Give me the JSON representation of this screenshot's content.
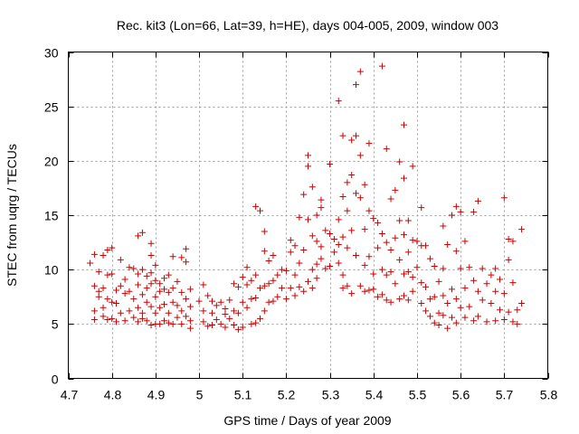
{
  "chart_data": {
    "type": "scatter",
    "title": "Rec. kit3 (Lon=66, Lat=39, h=HE), days 004-005, 2009, window 003",
    "xlabel": "GPS time / Days of year 2009",
    "ylabel": "STEC from uqrg / TECUs",
    "xlim": [
      4.7,
      5.8
    ],
    "ylim": [
      0,
      30
    ],
    "xticks": [
      "4.7",
      "4.8",
      "4.9",
      "5",
      "5.1",
      "5.2",
      "5.3",
      "5.4",
      "5.5",
      "5.6",
      "5.7",
      "5.8"
    ],
    "yticks": [
      "0",
      "5",
      "10",
      "15",
      "20",
      "25",
      "30"
    ],
    "grid": true,
    "marker": "plus",
    "color": "#cc0000",
    "series": [
      {
        "name": "",
        "points": [
          [
            4.75,
            10.6
          ],
          [
            4.76,
            11.4
          ],
          [
            4.76,
            8.5
          ],
          [
            4.76,
            6.2
          ],
          [
            4.76,
            5.4
          ],
          [
            4.77,
            9.8
          ],
          [
            4.77,
            8.0
          ],
          [
            4.77,
            7.5
          ],
          [
            4.78,
            11.3
          ],
          [
            4.78,
            8.3
          ],
          [
            4.78,
            6.5
          ],
          [
            4.78,
            5.7
          ],
          [
            4.79,
            11.8
          ],
          [
            4.79,
            9.5
          ],
          [
            4.79,
            7.3
          ],
          [
            4.79,
            5.4
          ],
          [
            4.8,
            12.0
          ],
          [
            4.8,
            9.6
          ],
          [
            4.8,
            7.0
          ],
          [
            4.8,
            5.5
          ],
          [
            4.81,
            8.1
          ],
          [
            4.81,
            6.9
          ],
          [
            4.81,
            5.2
          ],
          [
            4.82,
            10.9
          ],
          [
            4.82,
            8.5
          ],
          [
            4.82,
            6.0
          ],
          [
            4.83,
            9.1
          ],
          [
            4.83,
            7.8
          ],
          [
            4.83,
            5.3
          ],
          [
            4.84,
            10.2
          ],
          [
            4.84,
            8.0
          ],
          [
            4.84,
            6.2
          ],
          [
            4.85,
            10.1
          ],
          [
            4.85,
            7.3
          ],
          [
            4.85,
            5.6
          ],
          [
            4.86,
            13.1
          ],
          [
            4.86,
            9.6
          ],
          [
            4.86,
            8.6
          ],
          [
            4.86,
            6.5
          ],
          [
            4.86,
            5.2
          ],
          [
            4.87,
            13.4
          ],
          [
            4.87,
            10.0
          ],
          [
            4.87,
            7.7
          ],
          [
            4.87,
            6.0
          ],
          [
            4.87,
            5.5
          ],
          [
            4.88,
            9.4
          ],
          [
            4.88,
            8.3
          ],
          [
            4.88,
            7.0
          ],
          [
            4.88,
            5.3
          ],
          [
            4.89,
            12.4
          ],
          [
            4.89,
            11.3
          ],
          [
            4.89,
            9.7
          ],
          [
            4.89,
            8.7
          ],
          [
            4.89,
            6.6
          ],
          [
            4.89,
            4.9
          ],
          [
            4.9,
            10.4
          ],
          [
            4.9,
            9.0
          ],
          [
            4.9,
            7.5
          ],
          [
            4.9,
            6.0
          ],
          [
            4.9,
            5.0
          ],
          [
            4.91,
            8.7
          ],
          [
            4.91,
            8.0
          ],
          [
            4.91,
            6.5
          ],
          [
            4.91,
            5.0
          ],
          [
            4.92,
            9.2
          ],
          [
            4.92,
            8.2
          ],
          [
            4.92,
            6.8
          ],
          [
            4.92,
            5.3
          ],
          [
            4.93,
            9.5
          ],
          [
            4.93,
            7.9
          ],
          [
            4.93,
            6.0
          ],
          [
            4.93,
            5.1
          ],
          [
            4.94,
            11.2
          ],
          [
            4.94,
            8.3
          ],
          [
            4.94,
            7.0
          ],
          [
            4.94,
            5.0
          ],
          [
            4.95,
            8.9
          ],
          [
            4.95,
            6.7
          ],
          [
            4.95,
            5.6
          ],
          [
            4.96,
            11.1
          ],
          [
            4.96,
            7.9
          ],
          [
            4.96,
            6.2
          ],
          [
            4.96,
            5.0
          ],
          [
            4.97,
            11.9
          ],
          [
            4.97,
            10.7
          ],
          [
            4.97,
            7.3
          ],
          [
            4.97,
            5.7
          ],
          [
            4.98,
            8.2
          ],
          [
            4.98,
            6.6
          ],
          [
            4.98,
            5.3
          ],
          [
            4.98,
            4.6
          ],
          [
            5.0,
            7.1
          ],
          [
            5.01,
            8.6
          ],
          [
            5.01,
            6.2
          ],
          [
            5.01,
            5.2
          ],
          [
            5.02,
            7.6
          ],
          [
            5.02,
            4.8
          ],
          [
            5.03,
            7.1
          ],
          [
            5.03,
            6.0
          ],
          [
            5.03,
            4.9
          ],
          [
            5.04,
            6.7
          ],
          [
            5.04,
            5.4
          ],
          [
            5.05,
            7.0
          ],
          [
            5.05,
            5.0
          ],
          [
            5.06,
            6.4
          ],
          [
            5.06,
            5.9
          ],
          [
            5.06,
            4.7
          ],
          [
            5.07,
            7.2
          ],
          [
            5.07,
            5.5
          ],
          [
            5.08,
            8.7
          ],
          [
            5.08,
            6.2
          ],
          [
            5.08,
            4.9
          ],
          [
            5.09,
            8.4
          ],
          [
            5.09,
            6.0
          ],
          [
            5.09,
            4.5
          ],
          [
            5.1,
            9.3
          ],
          [
            5.1,
            7.0
          ],
          [
            5.1,
            4.7
          ],
          [
            5.11,
            10.2
          ],
          [
            5.11,
            8.6
          ],
          [
            5.11,
            6.5
          ],
          [
            5.12,
            9.0
          ],
          [
            5.12,
            7.3
          ],
          [
            5.12,
            5.0
          ],
          [
            5.13,
            15.8
          ],
          [
            5.13,
            9.5
          ],
          [
            5.13,
            7.4
          ],
          [
            5.13,
            5.1
          ],
          [
            5.14,
            15.4
          ],
          [
            5.14,
            8.3
          ],
          [
            5.14,
            5.5
          ],
          [
            5.15,
            13.5
          ],
          [
            5.15,
            11.7
          ],
          [
            5.15,
            8.5
          ],
          [
            5.15,
            6.2
          ],
          [
            5.16,
            10.8
          ],
          [
            5.16,
            8.7
          ],
          [
            5.16,
            7.0
          ],
          [
            5.17,
            11.3
          ],
          [
            5.17,
            9.0
          ],
          [
            5.17,
            7.1
          ],
          [
            5.18,
            9.5
          ],
          [
            5.18,
            7.5
          ],
          [
            5.19,
            10.0
          ],
          [
            5.19,
            8.3
          ],
          [
            5.2,
            9.9
          ],
          [
            5.2,
            7.3
          ],
          [
            5.21,
            12.7
          ],
          [
            5.21,
            11.6
          ],
          [
            5.21,
            8.3
          ],
          [
            5.22,
            12.2
          ],
          [
            5.22,
            9.5
          ],
          [
            5.22,
            7.6
          ],
          [
            5.23,
            14.8
          ],
          [
            5.23,
            10.6
          ],
          [
            5.23,
            8.4
          ],
          [
            5.24,
            16.9
          ],
          [
            5.24,
            11.8
          ],
          [
            5.24,
            8.0
          ],
          [
            5.25,
            20.5
          ],
          [
            5.25,
            19.5
          ],
          [
            5.25,
            14.6
          ],
          [
            5.25,
            8.9
          ],
          [
            5.26,
            17.6
          ],
          [
            5.26,
            13.1
          ],
          [
            5.26,
            10.0
          ],
          [
            5.26,
            8.3
          ],
          [
            5.27,
            15.0
          ],
          [
            5.27,
            12.6
          ],
          [
            5.27,
            10.5
          ],
          [
            5.27,
            9.2
          ],
          [
            5.28,
            16.4
          ],
          [
            5.28,
            15.7
          ],
          [
            5.28,
            12.1
          ],
          [
            5.28,
            11.0
          ],
          [
            5.29,
            13.6
          ],
          [
            5.29,
            10.1
          ],
          [
            5.3,
            19.7
          ],
          [
            5.3,
            13.3
          ],
          [
            5.3,
            10.3
          ],
          [
            5.31,
            12.8
          ],
          [
            5.31,
            11.6
          ],
          [
            5.32,
            25.5
          ],
          [
            5.32,
            14.6
          ],
          [
            5.32,
            12.3
          ],
          [
            5.32,
            10.6
          ],
          [
            5.33,
            22.3
          ],
          [
            5.33,
            16.7
          ],
          [
            5.33,
            13.0
          ],
          [
            5.33,
            9.5
          ],
          [
            5.33,
            8.3
          ],
          [
            5.34,
            18.0
          ],
          [
            5.34,
            15.4
          ],
          [
            5.34,
            12.0
          ],
          [
            5.34,
            8.5
          ],
          [
            5.35,
            21.9
          ],
          [
            5.35,
            18.7
          ],
          [
            5.35,
            13.6
          ],
          [
            5.35,
            7.8
          ],
          [
            5.36,
            27.0
          ],
          [
            5.36,
            22.3
          ],
          [
            5.36,
            17.0
          ],
          [
            5.36,
            11.3
          ],
          [
            5.37,
            28.2
          ],
          [
            5.37,
            20.5
          ],
          [
            5.37,
            16.6
          ],
          [
            5.37,
            8.5
          ],
          [
            5.38,
            17.8
          ],
          [
            5.38,
            13.7
          ],
          [
            5.38,
            10.4
          ],
          [
            5.38,
            8.0
          ],
          [
            5.39,
            21.6
          ],
          [
            5.39,
            15.4
          ],
          [
            5.39,
            11.2
          ],
          [
            5.39,
            8.1
          ],
          [
            5.4,
            14.7
          ],
          [
            5.4,
            9.6
          ],
          [
            5.4,
            8.2
          ],
          [
            5.41,
            14.3
          ],
          [
            5.41,
            12.0
          ],
          [
            5.41,
            7.5
          ],
          [
            5.42,
            28.7
          ],
          [
            5.42,
            13.3
          ],
          [
            5.42,
            10.0
          ],
          [
            5.42,
            7.7
          ],
          [
            5.43,
            21.1
          ],
          [
            5.43,
            12.5
          ],
          [
            5.43,
            9.5
          ],
          [
            5.43,
            7.2
          ],
          [
            5.44,
            16.5
          ],
          [
            5.44,
            11.8
          ],
          [
            5.44,
            9.8
          ],
          [
            5.44,
            7.0
          ],
          [
            5.45,
            17.3
          ],
          [
            5.45,
            12.9
          ],
          [
            5.45,
            8.7
          ],
          [
            5.46,
            19.9
          ],
          [
            5.46,
            14.5
          ],
          [
            5.46,
            10.9
          ],
          [
            5.46,
            7.3
          ],
          [
            5.47,
            23.3
          ],
          [
            5.47,
            18.4
          ],
          [
            5.47,
            13.2
          ],
          [
            5.47,
            9.6
          ],
          [
            5.47,
            7.6
          ],
          [
            5.48,
            14.5
          ],
          [
            5.48,
            11.6
          ],
          [
            5.48,
            9.8
          ],
          [
            5.48,
            7.2
          ],
          [
            5.49,
            19.5
          ],
          [
            5.49,
            12.7
          ],
          [
            5.49,
            9.3
          ],
          [
            5.49,
            8.0
          ],
          [
            5.5,
            12.6
          ],
          [
            5.5,
            10.2
          ],
          [
            5.51,
            15.7
          ],
          [
            5.51,
            12.2
          ],
          [
            5.51,
            8.8
          ],
          [
            5.51,
            6.9
          ],
          [
            5.52,
            12.2
          ],
          [
            5.52,
            8.4
          ],
          [
            5.52,
            6.2
          ],
          [
            5.53,
            11.0
          ],
          [
            5.53,
            7.3
          ],
          [
            5.53,
            5.7
          ],
          [
            5.54,
            10.3
          ],
          [
            5.54,
            7.5
          ],
          [
            5.54,
            5.1
          ],
          [
            5.55,
            8.9
          ],
          [
            5.55,
            6.0
          ],
          [
            5.55,
            4.9
          ],
          [
            5.56,
            14.0
          ],
          [
            5.56,
            10.1
          ],
          [
            5.56,
            7.6
          ],
          [
            5.56,
            5.8
          ],
          [
            5.57,
            12.3
          ],
          [
            5.57,
            6.9
          ],
          [
            5.57,
            4.6
          ],
          [
            5.58,
            15.0
          ],
          [
            5.58,
            8.2
          ],
          [
            5.58,
            5.6
          ],
          [
            5.59,
            15.8
          ],
          [
            5.59,
            11.7
          ],
          [
            5.59,
            7.3
          ],
          [
            5.59,
            5.1
          ],
          [
            5.6,
            15.3
          ],
          [
            5.6,
            10.1
          ],
          [
            5.6,
            6.5
          ],
          [
            5.61,
            12.6
          ],
          [
            5.61,
            8.3
          ],
          [
            5.61,
            5.6
          ],
          [
            5.62,
            10.2
          ],
          [
            5.62,
            6.6
          ],
          [
            5.63,
            15.3
          ],
          [
            5.63,
            9.0
          ],
          [
            5.63,
            5.3
          ],
          [
            5.64,
            16.3
          ],
          [
            5.64,
            8.0
          ],
          [
            5.64,
            5.7
          ],
          [
            5.65,
            10.1
          ],
          [
            5.65,
            7.2
          ],
          [
            5.66,
            8.7
          ],
          [
            5.66,
            5.2
          ],
          [
            5.67,
            9.5
          ],
          [
            5.67,
            6.9
          ],
          [
            5.68,
            10.1
          ],
          [
            5.68,
            8.0
          ],
          [
            5.68,
            5.3
          ],
          [
            5.69,
            9.1
          ],
          [
            5.69,
            6.3
          ],
          [
            5.7,
            16.6
          ],
          [
            5.7,
            7.8
          ],
          [
            5.7,
            5.4
          ],
          [
            5.71,
            12.8
          ],
          [
            5.71,
            10.9
          ],
          [
            5.71,
            6.1
          ],
          [
            5.72,
            12.6
          ],
          [
            5.72,
            8.8
          ],
          [
            5.72,
            5.2
          ],
          [
            5.73,
            6.3
          ],
          [
            5.73,
            5.0
          ],
          [
            5.74,
            13.7
          ],
          [
            5.74,
            6.9
          ]
        ]
      }
    ]
  }
}
